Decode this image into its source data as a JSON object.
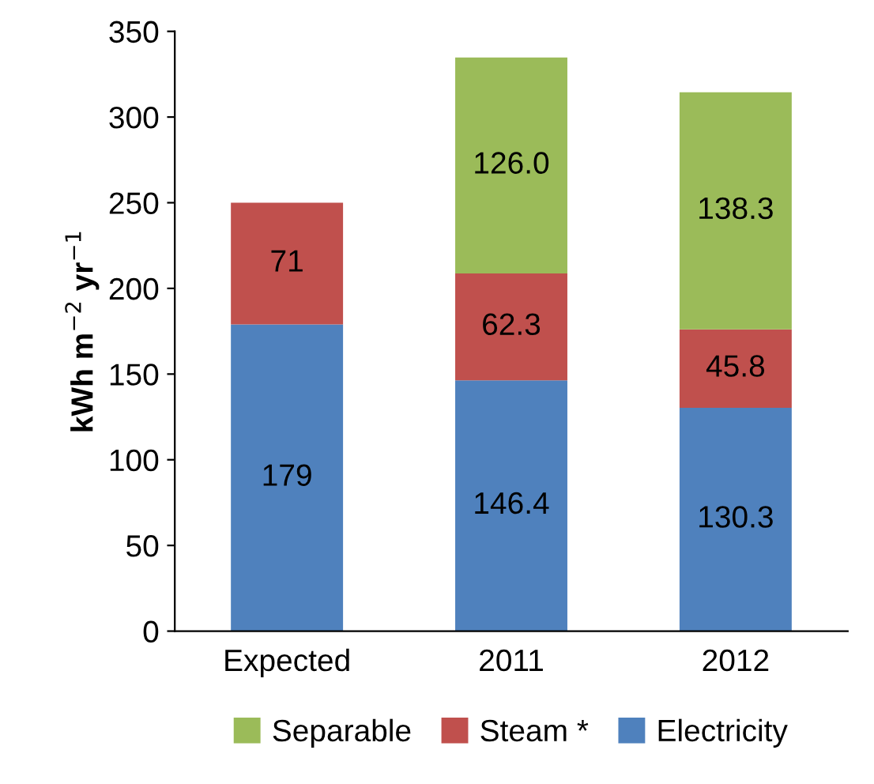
{
  "chart_data": {
    "type": "bar",
    "stacked": true,
    "ylabel": "kWh m$^{−2}$ yr$^{−1}$",
    "categories": [
      "Expected",
      "2011",
      "2012"
    ],
    "series": [
      {
        "name": "Electricity",
        "color": "#4f81bd",
        "values": [
          179,
          146.4,
          130.3
        ],
        "value_labels": [
          "179",
          "146.4",
          "130.3"
        ]
      },
      {
        "name": "Steam *",
        "color": "#c0504d",
        "values": [
          71,
          62.3,
          45.8
        ],
        "value_labels": [
          "71",
          "62.3",
          "45.8"
        ]
      },
      {
        "name": "Separable",
        "color": "#9bbb59",
        "values": [
          null,
          126.0,
          138.3
        ],
        "value_labels": [
          null,
          "126.0",
          "138.3"
        ]
      }
    ],
    "ylim": [
      0,
      350
    ],
    "yticks": [
      0,
      50,
      100,
      150,
      200,
      250,
      300,
      350
    ],
    "grid": false,
    "legend": "bottom"
  }
}
